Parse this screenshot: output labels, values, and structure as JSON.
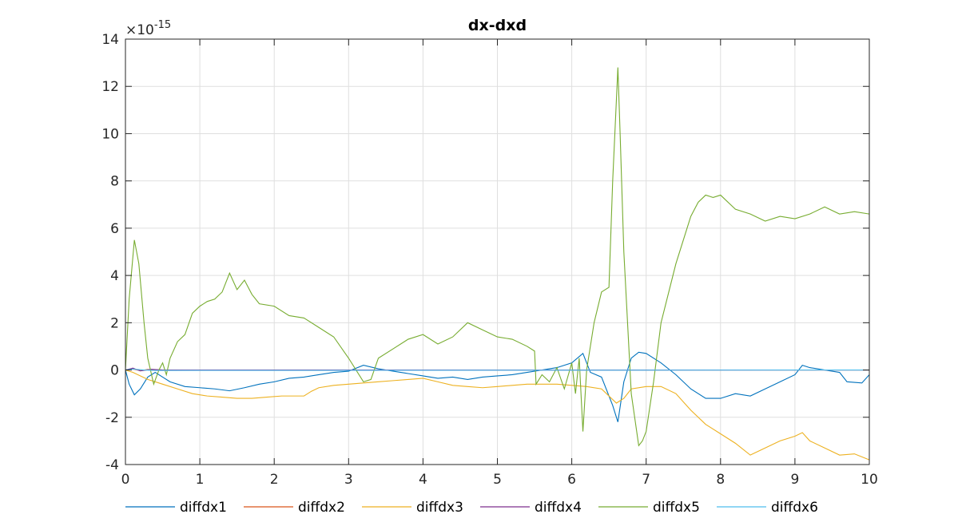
{
  "chart_data": {
    "type": "line",
    "title": "dx-dxd",
    "xlabel": "",
    "ylabel": "",
    "y_exponent_prefix": "×10",
    "y_exponent_power": "-15",
    "xlim": [
      0,
      10
    ],
    "ylim": [
      -4,
      14
    ],
    "xticks": [
      0,
      1,
      2,
      3,
      4,
      5,
      6,
      7,
      8,
      9,
      10
    ],
    "xtick_labels": [
      "0",
      "1",
      "2",
      "3",
      "4",
      "5",
      "6",
      "7",
      "8",
      "9",
      "10"
    ],
    "yticks": [
      -4,
      -2,
      0,
      2,
      4,
      6,
      8,
      10,
      12,
      14
    ],
    "ytick_labels": [
      "-4",
      "-2",
      "0",
      "2",
      "4",
      "6",
      "8",
      "10",
      "12",
      "14"
    ],
    "grid": true,
    "legend_position": "bottom",
    "series": [
      {
        "name": "diffdx1",
        "color": "#0072BD",
        "points": [
          [
            0,
            0
          ],
          [
            0.05,
            -0.6
          ],
          [
            0.12,
            -1.05
          ],
          [
            0.2,
            -0.8
          ],
          [
            0.3,
            -0.3
          ],
          [
            0.4,
            -0.1
          ],
          [
            0.5,
            -0.3
          ],
          [
            0.6,
            -0.5
          ],
          [
            0.8,
            -0.7
          ],
          [
            1.0,
            -0.75
          ],
          [
            1.2,
            -0.8
          ],
          [
            1.4,
            -0.88
          ],
          [
            1.6,
            -0.75
          ],
          [
            1.8,
            -0.6
          ],
          [
            2.0,
            -0.5
          ],
          [
            2.2,
            -0.35
          ],
          [
            2.4,
            -0.3
          ],
          [
            2.6,
            -0.2
          ],
          [
            2.8,
            -0.1
          ],
          [
            3.0,
            -0.05
          ],
          [
            3.2,
            0.2
          ],
          [
            3.4,
            0.05
          ],
          [
            3.6,
            -0.05
          ],
          [
            3.8,
            -0.15
          ],
          [
            4.0,
            -0.25
          ],
          [
            4.2,
            -0.35
          ],
          [
            4.4,
            -0.3
          ],
          [
            4.6,
            -0.4
          ],
          [
            4.8,
            -0.3
          ],
          [
            5.0,
            -0.25
          ],
          [
            5.2,
            -0.2
          ],
          [
            5.5,
            -0.05
          ],
          [
            5.8,
            0.1
          ],
          [
            6.0,
            0.3
          ],
          [
            6.15,
            0.7
          ],
          [
            6.25,
            -0.1
          ],
          [
            6.4,
            -0.3
          ],
          [
            6.55,
            -1.5
          ],
          [
            6.62,
            -2.2
          ],
          [
            6.7,
            -0.5
          ],
          [
            6.8,
            0.5
          ],
          [
            6.9,
            0.75
          ],
          [
            7.0,
            0.7
          ],
          [
            7.2,
            0.3
          ],
          [
            7.4,
            -0.2
          ],
          [
            7.6,
            -0.8
          ],
          [
            7.8,
            -1.2
          ],
          [
            8.0,
            -1.2
          ],
          [
            8.2,
            -1.0
          ],
          [
            8.4,
            -1.1
          ],
          [
            8.6,
            -0.8
          ],
          [
            8.8,
            -0.5
          ],
          [
            9.0,
            -0.2
          ],
          [
            9.1,
            0.2
          ],
          [
            9.2,
            0.1
          ],
          [
            9.4,
            0
          ],
          [
            9.6,
            -0.1
          ],
          [
            9.7,
            -0.5
          ],
          [
            9.9,
            -0.55
          ],
          [
            10,
            -0.2
          ]
        ]
      },
      {
        "name": "diffdx2",
        "color": "#D95319",
        "points": [
          [
            0,
            0
          ],
          [
            0.1,
            0.05
          ],
          [
            0.2,
            -0.03
          ],
          [
            0.3,
            0.02
          ],
          [
            0.5,
            0
          ],
          [
            10,
            0
          ]
        ]
      },
      {
        "name": "diffdx3",
        "color": "#EDB120",
        "points": [
          [
            0,
            0
          ],
          [
            0.1,
            -0.1
          ],
          [
            0.3,
            -0.4
          ],
          [
            0.5,
            -0.6
          ],
          [
            0.7,
            -0.8
          ],
          [
            0.9,
            -1.0
          ],
          [
            1.1,
            -1.1
          ],
          [
            1.3,
            -1.15
          ],
          [
            1.5,
            -1.2
          ],
          [
            1.7,
            -1.2
          ],
          [
            1.9,
            -1.15
          ],
          [
            2.1,
            -1.1
          ],
          [
            2.3,
            -1.1
          ],
          [
            2.4,
            -1.1
          ],
          [
            2.5,
            -0.9
          ],
          [
            2.6,
            -0.75
          ],
          [
            2.8,
            -0.65
          ],
          [
            3.0,
            -0.6
          ],
          [
            3.2,
            -0.55
          ],
          [
            3.4,
            -0.5
          ],
          [
            3.6,
            -0.45
          ],
          [
            3.8,
            -0.4
          ],
          [
            4.0,
            -0.35
          ],
          [
            4.2,
            -0.5
          ],
          [
            4.4,
            -0.65
          ],
          [
            4.6,
            -0.7
          ],
          [
            4.8,
            -0.75
          ],
          [
            5.0,
            -0.7
          ],
          [
            5.2,
            -0.65
          ],
          [
            5.4,
            -0.6
          ],
          [
            5.6,
            -0.6
          ],
          [
            5.8,
            -0.6
          ],
          [
            6.0,
            -0.65
          ],
          [
            6.2,
            -0.7
          ],
          [
            6.4,
            -0.8
          ],
          [
            6.6,
            -1.4
          ],
          [
            6.7,
            -1.2
          ],
          [
            6.8,
            -0.8
          ],
          [
            7.0,
            -0.7
          ],
          [
            7.2,
            -0.7
          ],
          [
            7.4,
            -1.0
          ],
          [
            7.6,
            -1.7
          ],
          [
            7.8,
            -2.3
          ],
          [
            8.0,
            -2.7
          ],
          [
            8.2,
            -3.1
          ],
          [
            8.4,
            -3.6
          ],
          [
            8.6,
            -3.3
          ],
          [
            8.8,
            -3.0
          ],
          [
            9.0,
            -2.8
          ],
          [
            9.1,
            -2.65
          ],
          [
            9.2,
            -3.0
          ],
          [
            9.4,
            -3.3
          ],
          [
            9.6,
            -3.6
          ],
          [
            9.8,
            -3.55
          ],
          [
            10,
            -3.8
          ]
        ]
      },
      {
        "name": "diffdx4",
        "color": "#7E2F8E",
        "points": [
          [
            0,
            0
          ],
          [
            0.1,
            0.08
          ],
          [
            0.2,
            -0.04
          ],
          [
            0.35,
            0.03
          ],
          [
            0.5,
            0
          ],
          [
            10,
            0
          ]
        ]
      },
      {
        "name": "diffdx5",
        "color": "#77AC30",
        "points": [
          [
            0,
            0
          ],
          [
            0.05,
            3.0
          ],
          [
            0.12,
            5.5
          ],
          [
            0.18,
            4.5
          ],
          [
            0.25,
            2.0
          ],
          [
            0.3,
            0.5
          ],
          [
            0.38,
            -0.6
          ],
          [
            0.45,
            0
          ],
          [
            0.5,
            0.3
          ],
          [
            0.55,
            -0.2
          ],
          [
            0.6,
            0.5
          ],
          [
            0.7,
            1.2
          ],
          [
            0.8,
            1.5
          ],
          [
            0.9,
            2.4
          ],
          [
            1.0,
            2.7
          ],
          [
            1.1,
            2.9
          ],
          [
            1.2,
            3.0
          ],
          [
            1.3,
            3.3
          ],
          [
            1.4,
            4.1
          ],
          [
            1.5,
            3.4
          ],
          [
            1.6,
            3.8
          ],
          [
            1.7,
            3.2
          ],
          [
            1.8,
            2.8
          ],
          [
            2.0,
            2.7
          ],
          [
            2.2,
            2.3
          ],
          [
            2.4,
            2.2
          ],
          [
            2.6,
            1.8
          ],
          [
            2.8,
            1.4
          ],
          [
            3.0,
            0.5
          ],
          [
            3.1,
            0
          ],
          [
            3.2,
            -0.5
          ],
          [
            3.3,
            -0.4
          ],
          [
            3.4,
            0.5
          ],
          [
            3.6,
            0.9
          ],
          [
            3.8,
            1.3
          ],
          [
            4.0,
            1.5
          ],
          [
            4.2,
            1.1
          ],
          [
            4.4,
            1.4
          ],
          [
            4.6,
            2.0
          ],
          [
            4.8,
            1.7
          ],
          [
            5.0,
            1.4
          ],
          [
            5.2,
            1.3
          ],
          [
            5.4,
            1.0
          ],
          [
            5.5,
            0.8
          ],
          [
            5.52,
            -0.6
          ],
          [
            5.6,
            -0.2
          ],
          [
            5.7,
            -0.5
          ],
          [
            5.8,
            0.1
          ],
          [
            5.9,
            -0.8
          ],
          [
            6.0,
            0.3
          ],
          [
            6.05,
            -1.0
          ],
          [
            6.1,
            0.5
          ],
          [
            6.15,
            -2.6
          ],
          [
            6.2,
            0
          ],
          [
            6.3,
            2.0
          ],
          [
            6.4,
            3.3
          ],
          [
            6.5,
            3.5
          ],
          [
            6.55,
            8.0
          ],
          [
            6.62,
            12.8
          ],
          [
            6.65,
            10.0
          ],
          [
            6.7,
            5.0
          ],
          [
            6.8,
            -1.0
          ],
          [
            6.9,
            -3.2
          ],
          [
            6.95,
            -3.0
          ],
          [
            7.0,
            -2.6
          ],
          [
            7.1,
            -0.5
          ],
          [
            7.2,
            2.0
          ],
          [
            7.4,
            4.5
          ],
          [
            7.6,
            6.5
          ],
          [
            7.7,
            7.1
          ],
          [
            7.8,
            7.4
          ],
          [
            7.9,
            7.3
          ],
          [
            8.0,
            7.4
          ],
          [
            8.2,
            6.8
          ],
          [
            8.4,
            6.6
          ],
          [
            8.6,
            6.3
          ],
          [
            8.8,
            6.5
          ],
          [
            9.0,
            6.4
          ],
          [
            9.2,
            6.6
          ],
          [
            9.4,
            6.9
          ],
          [
            9.6,
            6.6
          ],
          [
            9.8,
            6.7
          ],
          [
            10,
            6.6
          ]
        ]
      },
      {
        "name": "diffdx6",
        "color": "#4DBEEE",
        "points": [
          [
            0,
            0
          ],
          [
            0.1,
            0.04
          ],
          [
            0.25,
            0
          ],
          [
            0.4,
            -0.02
          ],
          [
            10,
            0
          ]
        ]
      }
    ]
  }
}
